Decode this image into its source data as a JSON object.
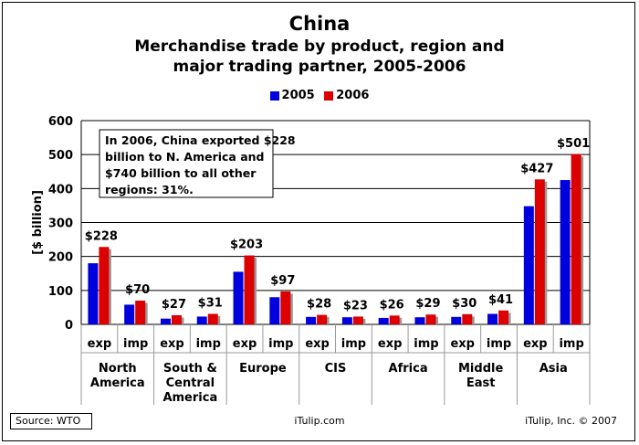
{
  "header": {
    "title": "China",
    "subtitle_line1": "Merchandise trade by product, region and",
    "subtitle_line2": "major trading partner, 2005-2006"
  },
  "legend": {
    "series_2005": "2005",
    "series_2006": "2006"
  },
  "colors": {
    "series_2005": "#0000dd",
    "series_2006": "#dd0000",
    "grid": "#000000"
  },
  "annotation": "In 2006, China exported $228 billion to N. America and $740 billion to all other regions: 31%.",
  "footer": {
    "source": "Source: WTO",
    "site": "iTulip.com",
    "copyright": "iTulip, Inc. © 2007"
  },
  "chart_data": {
    "type": "bar",
    "ylabel": "[$ billion]",
    "ylim": [
      0,
      600
    ],
    "yticks": [
      0,
      100,
      200,
      300,
      400,
      500,
      600
    ],
    "grid": true,
    "legend_position": "top-center",
    "regions": [
      "North America",
      "South & Central America",
      "Europe",
      "CIS",
      "Africa",
      "Middle East",
      "Asia"
    ],
    "region_label_lines": [
      [
        "North",
        "America"
      ],
      [
        "South &",
        "Central",
        "America"
      ],
      [
        "Europe"
      ],
      [
        "CIS"
      ],
      [
        "Africa"
      ],
      [
        "Middle",
        "East"
      ],
      [
        "Asia"
      ]
    ],
    "categories": [
      "exp",
      "imp",
      "exp",
      "imp",
      "exp",
      "imp",
      "exp",
      "imp",
      "exp",
      "imp",
      "exp",
      "imp",
      "exp",
      "imp"
    ],
    "series": [
      {
        "name": "2005",
        "values": [
          180,
          58,
          17,
          23,
          155,
          80,
          22,
          21,
          19,
          21,
          22,
          31,
          348,
          425
        ]
      },
      {
        "name": "2006",
        "values": [
          228,
          70,
          27,
          31,
          203,
          97,
          28,
          23,
          26,
          29,
          30,
          41,
          427,
          501
        ]
      }
    ],
    "data_labels": [
      "$228",
      "$70",
      "$27",
      "$31",
      "$203",
      "$97",
      "$28",
      "$23",
      "$26",
      "$29",
      "$30",
      "$41",
      "$427",
      "$501"
    ]
  }
}
